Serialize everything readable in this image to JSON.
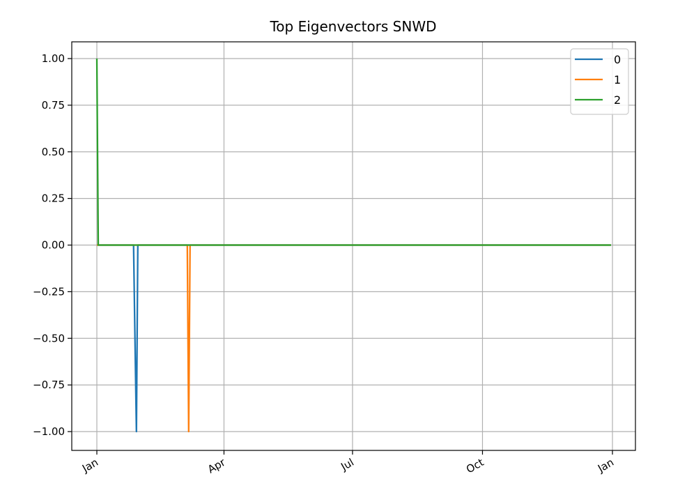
{
  "chart_data": {
    "type": "line",
    "title": "Top Eigenvectors SNWD",
    "xlabel": "",
    "ylabel": "",
    "xlim": [
      0,
      365
    ],
    "ylim": [
      -1.1,
      1.1
    ],
    "x_ticks": [
      {
        "label": "Jan",
        "day": 0
      },
      {
        "label": "Apr",
        "day": 90
      },
      {
        "label": "Jul",
        "day": 181
      },
      {
        "label": "Oct",
        "day": 273
      },
      {
        "label": "Jan",
        "day": 365
      }
    ],
    "y_ticks": [
      {
        "label": "1.00",
        "value": 1.0
      },
      {
        "label": "0.75",
        "value": 0.75
      },
      {
        "label": "0.50",
        "value": 0.5
      },
      {
        "label": "0.25",
        "value": 0.25
      },
      {
        "label": "0.00",
        "value": 0.0
      },
      {
        "label": "−0.25",
        "value": -0.25
      },
      {
        "label": "−0.50",
        "value": -0.5
      },
      {
        "label": "−0.75",
        "value": -0.75
      },
      {
        "label": "−1.00",
        "value": -1.0
      }
    ],
    "grid": true,
    "legend": "top-right",
    "series": [
      {
        "name": "0",
        "color": "#1f77b4",
        "x": [
          0,
          26,
          27,
          28,
          29,
          364
        ],
        "y": [
          0,
          0,
          -0.5,
          -1.0,
          0,
          0
        ]
      },
      {
        "name": "1",
        "color": "#ff7f0e",
        "x": [
          0,
          64,
          65,
          66,
          364
        ],
        "y": [
          0,
          0,
          -1.0,
          0,
          0
        ]
      },
      {
        "name": "2",
        "color": "#2ca02c",
        "x": [
          0,
          1,
          364
        ],
        "y": [
          1.0,
          0,
          0
        ]
      }
    ]
  }
}
